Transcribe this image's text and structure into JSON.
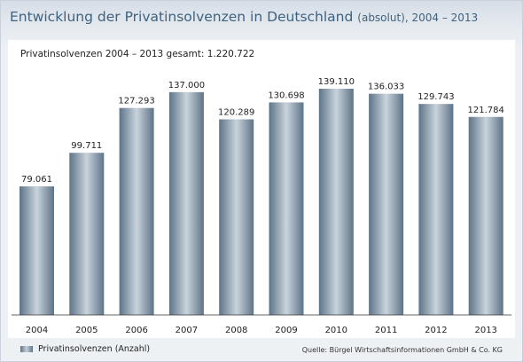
{
  "title": "Entwicklung der Privatinsolvenzen in Deutschland",
  "title_suffix": "(absolut), 2004 – 2013",
  "subtitle": "Privatinsolvenzen 2004 – 2013 gesamt: 1.220.722",
  "source": "Quelle: Bürgel Wirtschaftsinformationen GmbH & Co. KG",
  "colors": {
    "title": "#3f6280",
    "bar_dark": "#5d7488",
    "bar_light": "#c7d1da"
  },
  "chart_data": {
    "type": "bar",
    "categories": [
      "2004",
      "2005",
      "2006",
      "2007",
      "2008",
      "2009",
      "2010",
      "2011",
      "2012",
      "2013"
    ],
    "series": [
      {
        "name": "Privatinsolvenzen (Anzahl)",
        "values": [
          79061,
          99711,
          127293,
          137000,
          120289,
          130698,
          139110,
          136033,
          129743,
          121784
        ],
        "labels": [
          "79.061",
          "99.711",
          "127.293",
          "137.000",
          "120.289",
          "130.698",
          "139.110",
          "136.033",
          "129.743",
          "121.784"
        ]
      }
    ],
    "ylim": [
      0,
      139110
    ],
    "grid": false,
    "legend": "bottom-left"
  }
}
